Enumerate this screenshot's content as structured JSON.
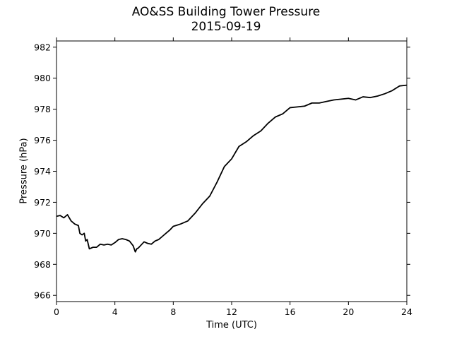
{
  "chart_data": {
    "type": "line",
    "title": "AO&SS Building Tower Pressure",
    "subtitle": "2015-09-19",
    "xlabel": "Time (UTC)",
    "ylabel": "Pressure (hPa)",
    "xlim": [
      0,
      24
    ],
    "ylim": [
      965.6,
      982.4
    ],
    "xticks": [
      0,
      4,
      8,
      12,
      16,
      20,
      24
    ],
    "yticks": [
      966,
      968,
      970,
      972,
      974,
      976,
      978,
      980,
      982
    ],
    "grid": false,
    "line_color": "#000000",
    "series": [
      {
        "x": [
          0,
          0.25,
          0.5,
          0.75,
          1.0,
          1.25,
          1.5,
          1.6,
          1.75,
          1.9,
          2.0,
          2.1,
          2.25,
          2.5,
          2.75,
          3.0,
          3.25,
          3.5,
          3.75,
          4.0,
          4.25,
          4.5,
          4.75,
          5.0,
          5.25,
          5.4,
          5.5,
          5.6,
          5.75,
          6.0,
          6.25,
          6.5,
          6.75,
          7.0,
          7.25,
          7.5,
          7.75,
          8.0,
          8.5,
          9.0,
          9.5,
          10.0,
          10.5,
          11.0,
          11.5,
          12.0,
          12.5,
          13.0,
          13.5,
          14.0,
          14.5,
          15.0,
          15.5,
          16.0,
          16.5,
          17.0,
          17.5,
          18.0,
          18.5,
          19.0,
          19.5,
          20.0,
          20.5,
          21.0,
          21.5,
          22.0,
          22.5,
          23.0,
          23.5,
          24.0
        ],
        "y": [
          971.1,
          971.15,
          971.0,
          971.2,
          970.8,
          970.6,
          970.5,
          970.0,
          969.9,
          970.0,
          969.5,
          969.6,
          969.0,
          969.1,
          969.1,
          969.3,
          969.25,
          969.3,
          969.25,
          969.4,
          969.6,
          969.65,
          969.6,
          969.5,
          969.2,
          968.8,
          969.0,
          969.05,
          969.2,
          969.45,
          969.35,
          969.3,
          969.5,
          969.6,
          969.8,
          970.0,
          970.2,
          970.45,
          970.6,
          970.8,
          971.3,
          971.9,
          972.4,
          973.3,
          974.3,
          974.8,
          975.6,
          975.9,
          976.3,
          976.6,
          977.1,
          977.5,
          977.7,
          978.1,
          978.15,
          978.2,
          978.4,
          978.4,
          978.5,
          978.6,
          978.65,
          978.7,
          978.6,
          978.8,
          978.75,
          978.85,
          979.0,
          979.2,
          979.5,
          979.55
        ]
      }
    ]
  }
}
